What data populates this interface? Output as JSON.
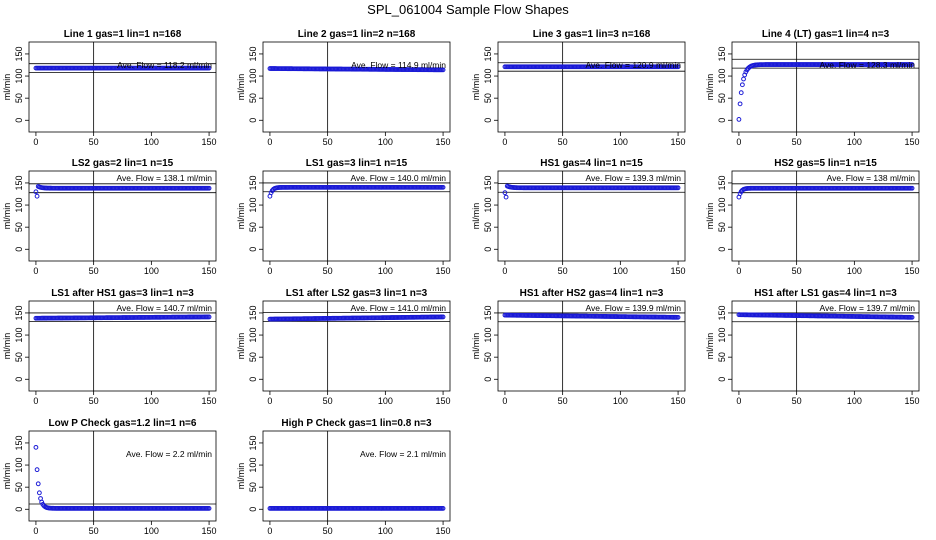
{
  "page_title": "SPL_061004  Sample Flow Shapes",
  "chart_data": [
    {
      "type": "scatter",
      "title": "Line 1 gas=1 lin=1 n=168",
      "ylabel": "ml/min",
      "xlim": [
        0,
        150
      ],
      "ylim": [
        0,
        150
      ],
      "xticks": [
        0,
        50,
        100,
        150
      ],
      "yticks": [
        0,
        50,
        100,
        150
      ],
      "annotation": "Ave. Flow =  118.2  ml/min",
      "avg": 118.2,
      "vline_x": 50,
      "hlines": [
        128,
        108
      ],
      "shape": "flat",
      "start": 118,
      "plateau": 118
    },
    {
      "type": "scatter",
      "title": "Line 2 gas=1 lin=2 n=168",
      "ylabel": "ml/min",
      "xlim": [
        0,
        150
      ],
      "ylim": [
        0,
        150
      ],
      "xticks": [
        0,
        50,
        100,
        150
      ],
      "yticks": [
        0,
        50,
        100,
        150
      ],
      "annotation": "Ave. Flow =  114.9  ml/min",
      "avg": 114.9,
      "vline_x": 50,
      "hlines": [],
      "shape": "flat",
      "start": 117,
      "plateau": 114
    },
    {
      "type": "scatter",
      "title": "Line 3 gas=1 lin=3 n=168",
      "ylabel": "ml/min",
      "xlim": [
        0,
        150
      ],
      "ylim": [
        0,
        150
      ],
      "xticks": [
        0,
        50,
        100,
        150
      ],
      "yticks": [
        0,
        50,
        100,
        150
      ],
      "annotation": "Ave. Flow =  120.9  ml/min",
      "avg": 120.9,
      "vline_x": 50,
      "hlines": [
        130,
        111
      ],
      "shape": "flat",
      "start": 121,
      "plateau": 121
    },
    {
      "type": "scatter",
      "title": "Line 4 (LT) gas=1 lin=4 n=3",
      "ylabel": "ml/min",
      "xlim": [
        0,
        150
      ],
      "ylim": [
        0,
        150
      ],
      "xticks": [
        0,
        50,
        100,
        150
      ],
      "yticks": [
        0,
        50,
        100,
        150
      ],
      "annotation": "Ave. Flow =  128.3  ml/min",
      "avg": 128.3,
      "vline_x": 50,
      "hlines": [
        138,
        118
      ],
      "shape": "rise",
      "start": 2,
      "plateau": 126,
      "tau": 3
    },
    {
      "type": "scatter",
      "title": "LS2 gas=2 lin=1 n=15",
      "ylabel": "ml/min",
      "xlim": [
        0,
        150
      ],
      "ylim": [
        0,
        150
      ],
      "xticks": [
        0,
        50,
        100,
        150
      ],
      "yticks": [
        0,
        50,
        100,
        150
      ],
      "annotation": "Ave. Flow =  138.1  ml/min",
      "avg": 138.1,
      "vline_x": 50,
      "hlines": [
        148,
        128
      ],
      "shape": "dip",
      "start": 120,
      "plateau": 138
    },
    {
      "type": "scatter",
      "title": "LS1 gas=3 lin=1 n=15",
      "ylabel": "ml/min",
      "xlim": [
        0,
        150
      ],
      "ylim": [
        0,
        150
      ],
      "xticks": [
        0,
        50,
        100,
        150
      ],
      "yticks": [
        0,
        50,
        100,
        150
      ],
      "annotation": "Ave. Flow =  140.0  ml/min",
      "avg": 140.0,
      "vline_x": 50,
      "hlines": [
        150,
        130
      ],
      "shape": "rise",
      "start": 120,
      "plateau": 140,
      "tau": 2
    },
    {
      "type": "scatter",
      "title": "HS1 gas=4 lin=1 n=15",
      "ylabel": "ml/min",
      "xlim": [
        0,
        150
      ],
      "ylim": [
        0,
        150
      ],
      "xticks": [
        0,
        50,
        100,
        150
      ],
      "yticks": [
        0,
        50,
        100,
        150
      ],
      "annotation": "Ave. Flow =  139.3  ml/min",
      "avg": 139.3,
      "vline_x": 50,
      "hlines": [
        149,
        129
      ],
      "shape": "dip",
      "start": 118,
      "plateau": 139
    },
    {
      "type": "scatter",
      "title": "HS2 gas=5 lin=1 n=15",
      "ylabel": "ml/min",
      "xlim": [
        0,
        150
      ],
      "ylim": [
        0,
        150
      ],
      "xticks": [
        0,
        50,
        100,
        150
      ],
      "yticks": [
        0,
        50,
        100,
        150
      ],
      "annotation": "Ave. Flow =  138  ml/min",
      "avg": 138,
      "vline_x": 50,
      "hlines": [
        148,
        128
      ],
      "shape": "rise",
      "start": 118,
      "plateau": 138,
      "tau": 2
    },
    {
      "type": "scatter",
      "title": "LS1 after HS1 gas=3 lin=1 n=3",
      "ylabel": "ml/min",
      "xlim": [
        0,
        150
      ],
      "ylim": [
        0,
        150
      ],
      "xticks": [
        0,
        50,
        100,
        150
      ],
      "yticks": [
        0,
        50,
        100,
        150
      ],
      "annotation": "Ave. Flow =  140.7  ml/min",
      "avg": 140.7,
      "vline_x": 50,
      "hlines": [
        150,
        131
      ],
      "shape": "flat",
      "start": 138,
      "plateau": 141
    },
    {
      "type": "scatter",
      "title": "LS1 after LS2 gas=3 lin=1 n=3",
      "ylabel": "ml/min",
      "xlim": [
        0,
        150
      ],
      "ylim": [
        0,
        150
      ],
      "xticks": [
        0,
        50,
        100,
        150
      ],
      "yticks": [
        0,
        50,
        100,
        150
      ],
      "annotation": "Ave. Flow =  141.0  ml/min",
      "avg": 141.0,
      "vline_x": 50,
      "hlines": [
        151,
        131
      ],
      "shape": "flat",
      "start": 136,
      "plateau": 141
    },
    {
      "type": "scatter",
      "title": "HS1 after HS2 gas=4 lin=1 n=3",
      "ylabel": "ml/min",
      "xlim": [
        0,
        150
      ],
      "ylim": [
        0,
        150
      ],
      "xticks": [
        0,
        50,
        100,
        150
      ],
      "yticks": [
        0,
        50,
        100,
        150
      ],
      "annotation": "Ave. Flow =  139.9  ml/min",
      "avg": 139.9,
      "vline_x": 50,
      "hlines": [
        150,
        130
      ],
      "shape": "flat",
      "start": 145,
      "plateau": 140
    },
    {
      "type": "scatter",
      "title": "HS1 after LS1 gas=4 lin=1 n=3",
      "ylabel": "ml/min",
      "xlim": [
        0,
        150
      ],
      "ylim": [
        0,
        150
      ],
      "xticks": [
        0,
        50,
        100,
        150
      ],
      "yticks": [
        0,
        50,
        100,
        150
      ],
      "annotation": "Ave. Flow =  139.7  ml/min",
      "avg": 139.7,
      "vline_x": 50,
      "hlines": [
        150,
        130
      ],
      "shape": "flat",
      "start": 146,
      "plateau": 140
    },
    {
      "type": "scatter",
      "title": "Low P Check gas=1.2 lin=1 n=6",
      "ylabel": "ml/min",
      "xlim": [
        0,
        150
      ],
      "ylim": [
        0,
        150
      ],
      "xticks": [
        0,
        50,
        100,
        150
      ],
      "yticks": [
        0,
        50,
        100,
        150
      ],
      "annotation": "Ave. Flow =  2.2  ml/min",
      "avg": 2.2,
      "vline_x": 50,
      "hlines": [
        12
      ],
      "shape": "decay",
      "start": 140,
      "plateau": 2,
      "tau": 2.2
    },
    {
      "type": "scatter",
      "title": "High P Check gas=1 lin=0.8 n=3",
      "ylabel": "ml/min",
      "xlim": [
        0,
        150
      ],
      "ylim": [
        0,
        150
      ],
      "xticks": [
        0,
        50,
        100,
        150
      ],
      "yticks": [
        0,
        50,
        100,
        150
      ],
      "annotation": "Ave. Flow =  2.1  ml/min",
      "avg": 2.1,
      "vline_x": 50,
      "hlines": [],
      "shape": "flat",
      "start": 2,
      "plateau": 2
    }
  ],
  "colors": {
    "points": "#1a1ad6",
    "axes": "#000000"
  }
}
